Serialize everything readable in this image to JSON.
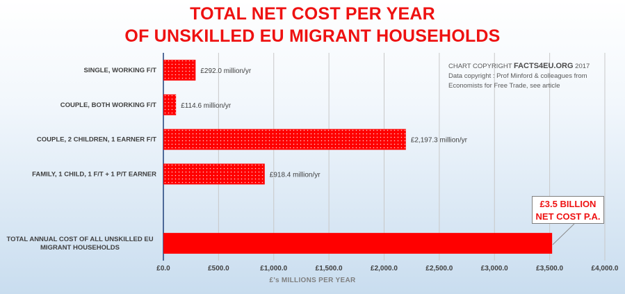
{
  "header": {
    "title_line1": "TOTAL NET COST PER YEAR",
    "title_line2": "OF UNSKILLED EU MIGRANT HOUSEHOLDS"
  },
  "copyright": {
    "prefix": "CHART COPYRIGHT ",
    "brand": "FACTS4EU.ORG",
    "year": " 2017",
    "line2": "Data copyright : Prof Minford & colleagues from",
    "line3": "Economists for Free Trade, see article"
  },
  "callout": {
    "line1": "£3.5 BILLION",
    "line2": "NET COST P.A."
  },
  "chart_data": {
    "type": "bar",
    "orientation": "horizontal",
    "xlabel": "£'s MILLIONS PER YEAR",
    "xlim": [
      0,
      4000
    ],
    "x_ticks": [
      "£0.0",
      "£500.0",
      "£1,000.0",
      "£1,500.0",
      "£2,000.0",
      "£2,500.0",
      "£3,000.0",
      "£3,500.0",
      "£4,000.0"
    ],
    "grid": true,
    "bar_color": "#ff0000",
    "categories": [
      {
        "label_lines": [
          "SINGLE, WORKING F/T"
        ],
        "value": 292.0,
        "data_label": "£292.0 million/yr"
      },
      {
        "label_lines": [
          "COUPLE, BOTH WORKING F/T"
        ],
        "value": 114.6,
        "data_label": "£114.6 million/yr"
      },
      {
        "label_lines": [
          "COUPLE, 2 CHILDREN, 1 EARNER F/T"
        ],
        "value": 2197.3,
        "data_label": "£2,197.3 million/yr"
      },
      {
        "label_lines": [
          "FAMILY, 1 CHILD, 1 F/T + 1 P/T EARNER"
        ],
        "value": 918.4,
        "data_label": "£918.4 million/yr"
      },
      {
        "label_lines": [],
        "value": null,
        "data_label": ""
      },
      {
        "label_lines": [
          "TOTAL ANNUAL COST OF ALL UNSKILLED EU",
          "MIGRANT HOUSEHOLDS"
        ],
        "value": 3522.3,
        "data_label": ""
      }
    ]
  }
}
